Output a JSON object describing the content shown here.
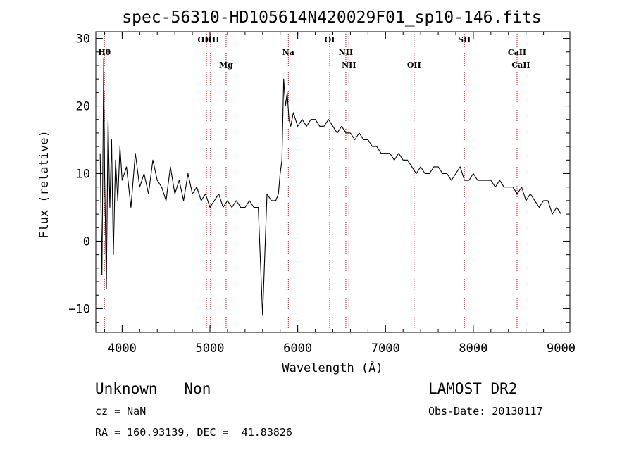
{
  "chart_data": {
    "type": "line",
    "title": "spec-56310-HD105614N420029F01_sp10-146.fits",
    "xlabel": "Wavelength (Å)",
    "ylabel": "Flux (relative)",
    "xlim": [
      3700,
      9100
    ],
    "ylim": [
      -13.5,
      31
    ],
    "x_ticks": [
      4000,
      5000,
      6000,
      7000,
      8000,
      9000
    ],
    "y_ticks": [
      -10,
      0,
      10,
      20,
      30
    ],
    "grid": false,
    "series": [
      {
        "x": [
          3750,
          3770,
          3790,
          3800,
          3820,
          3840,
          3860,
          3880,
          3900,
          3925,
          3950,
          3975,
          4000,
          4050,
          4100,
          4150,
          4200,
          4250,
          4300,
          4350,
          4400,
          4450,
          4500,
          4550,
          4600,
          4650,
          4700,
          4750,
          4800,
          4850,
          4900,
          4950,
          5000,
          5050,
          5100,
          5150,
          5200,
          5250,
          5300,
          5350,
          5400,
          5450,
          5500,
          5550,
          5600,
          5650,
          5700,
          5750,
          5780,
          5800,
          5820,
          5840,
          5860,
          5880,
          5900,
          5920,
          5950,
          6000,
          6050,
          6100,
          6150,
          6200,
          6250,
          6300,
          6350,
          6400,
          6450,
          6500,
          6550,
          6600,
          6650,
          6700,
          6750,
          6800,
          6850,
          6900,
          6950,
          7000,
          7050,
          7100,
          7150,
          7200,
          7250,
          7300,
          7350,
          7400,
          7450,
          7500,
          7550,
          7600,
          7650,
          7700,
          7750,
          7800,
          7850,
          7900,
          7950,
          8000,
          8050,
          8100,
          8150,
          8200,
          8250,
          8300,
          8350,
          8400,
          8450,
          8500,
          8550,
          8600,
          8650,
          8700,
          8750,
          8800,
          8850,
          8900,
          8950,
          9000
        ],
        "values": [
          13,
          -5,
          27,
          10,
          -7,
          18,
          5,
          15,
          -2,
          12,
          6,
          14,
          9,
          11,
          5,
          13,
          8,
          10,
          7,
          12,
          9,
          8,
          6,
          11,
          7,
          9,
          6,
          10,
          7,
          8,
          6,
          7,
          5,
          6,
          7,
          5,
          6,
          5,
          6,
          5,
          5,
          6,
          5,
          5,
          -11,
          7,
          6,
          6,
          7,
          10,
          12,
          24,
          20,
          22,
          18,
          17,
          19,
          17,
          18,
          17,
          18,
          18,
          17,
          17,
          18,
          17,
          16,
          17,
          16,
          16,
          15,
          16,
          15,
          15,
          14,
          14,
          13,
          13,
          13,
          12,
          13,
          12,
          12,
          11,
          10,
          11,
          10,
          10,
          11,
          11,
          10,
          10,
          9,
          10,
          11,
          9,
          9,
          10,
          9,
          9,
          9,
          9,
          8,
          9,
          8,
          8,
          8,
          7,
          8,
          6,
          7,
          6,
          5,
          6,
          6,
          4,
          5,
          4
        ],
        "color": "#000000"
      }
    ],
    "line_markers": [
      {
        "label": "Hθ",
        "x": 3798,
        "row": 1
      },
      {
        "label": "OIII",
        "x": 4960,
        "row": 0
      },
      {
        "label": "OIII",
        "x": 5007,
        "row": 0
      },
      {
        "label": "Mg",
        "x": 5184,
        "row": 2
      },
      {
        "label": "Na",
        "x": 5893,
        "row": 1
      },
      {
        "label": "OI",
        "x": 6364,
        "row": 0
      },
      {
        "label": "NII",
        "x": 6548,
        "row": 1
      },
      {
        "label": "NII",
        "x": 6583,
        "row": 2
      },
      {
        "label": "OII",
        "x": 7325,
        "row": 2
      },
      {
        "label": "SII",
        "x": 7898,
        "row": 0
      },
      {
        "label": "CaII",
        "x": 8498,
        "row": 1
      },
      {
        "label": "CaII",
        "x": 8542,
        "row": 2
      }
    ],
    "marker_color": "#cc0000"
  },
  "info": {
    "class_line": "Unknown   Non",
    "survey": "LAMOST DR2",
    "cz": "cz = NaN",
    "obs_date": "Obs-Date: 20130117",
    "radec": "RA = 160.93139, DEC =  41.83826"
  }
}
